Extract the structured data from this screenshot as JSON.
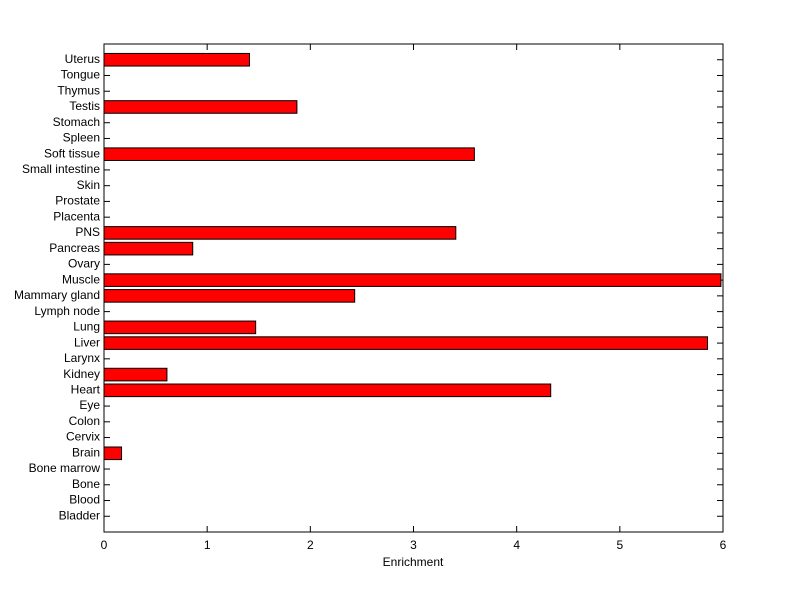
{
  "chart_data": {
    "type": "barh",
    "x_label": "Enrichment",
    "categories": [
      "Bladder",
      "Blood",
      "Bone",
      "Bone marrow",
      "Brain",
      "Cervix",
      "Colon",
      "Eye",
      "Heart",
      "Kidney",
      "Larynx",
      "Liver",
      "Lung",
      "Lymph node",
      "Mammary gland",
      "Muscle",
      "Ovary",
      "Pancreas",
      "PNS",
      "Placenta",
      "Prostate",
      "Skin",
      "Small intestine",
      "Soft tissue",
      "Spleen",
      "Stomach",
      "Testis",
      "Thymus",
      "Tongue",
      "Uterus"
    ],
    "values": [
      0,
      0,
      0,
      0,
      0.17,
      0,
      0,
      0,
      4.33,
      0.61,
      0,
      5.85,
      1.47,
      0,
      2.43,
      5.98,
      0,
      0.86,
      3.41,
      0,
      0,
      0,
      0,
      3.59,
      0,
      0,
      1.87,
      0,
      0,
      1.41
    ],
    "color": "#ff0000",
    "xlim": [
      0,
      6
    ],
    "xticks": [
      0,
      1,
      2,
      3,
      4,
      5,
      6
    ]
  }
}
